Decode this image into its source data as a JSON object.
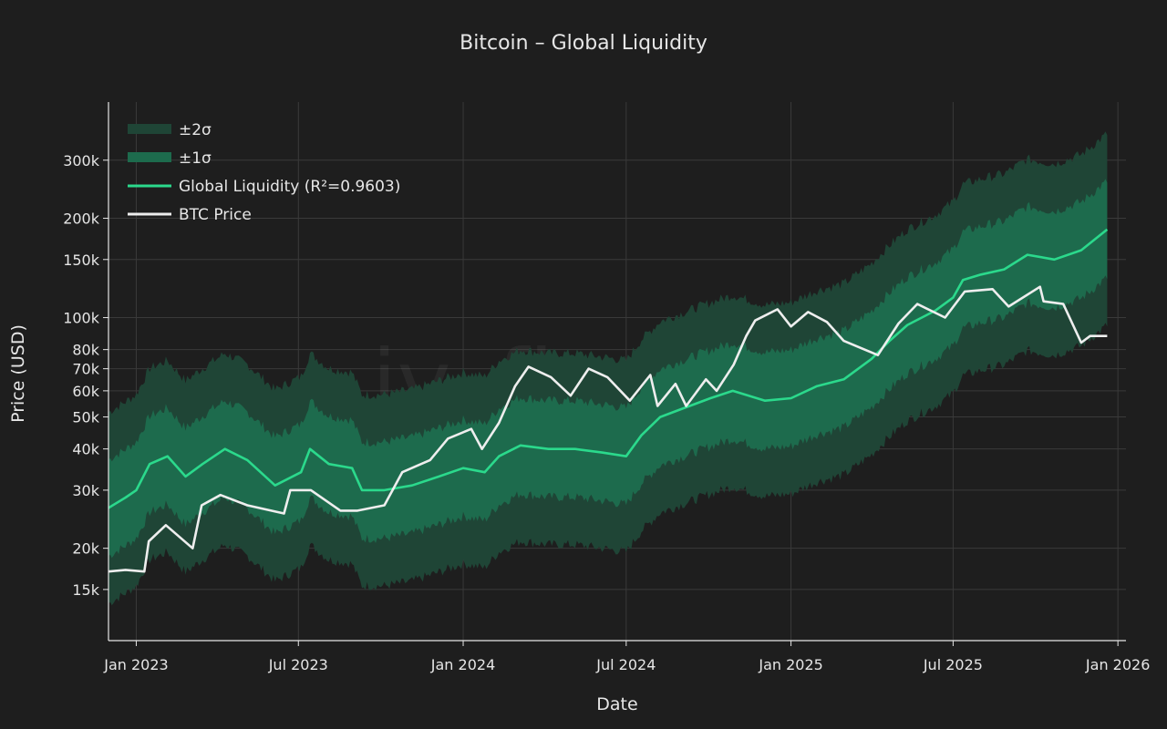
{
  "chart_data": {
    "type": "area",
    "title": "Bitcoin – Global Liquidity",
    "xlabel": "Date",
    "ylabel": "Price (USD)",
    "watermark": "jv_finance",
    "y_scale": "log",
    "ylim": [
      10500,
      450000
    ],
    "xlim": [
      "2022-12-01",
      "2026-01-10"
    ],
    "grid": true,
    "legend_position": "top-left",
    "x_ticks": [
      {
        "date": "2023-01-01",
        "label": "Jan 2023"
      },
      {
        "date": "2023-07-01",
        "label": "Jul 2023"
      },
      {
        "date": "2024-01-01",
        "label": "Jan 2024"
      },
      {
        "date": "2024-07-01",
        "label": "Jul 2024"
      },
      {
        "date": "2025-01-01",
        "label": "Jan 2025"
      },
      {
        "date": "2025-07-01",
        "label": "Jul 2025"
      },
      {
        "date": "2026-01-01",
        "label": "Jan 2026"
      }
    ],
    "y_ticks": [
      {
        "value": 15000,
        "label": "15k"
      },
      {
        "value": 20000,
        "label": "20k"
      },
      {
        "value": 30000,
        "label": "30k"
      },
      {
        "value": 40000,
        "label": "40k"
      },
      {
        "value": 50000,
        "label": "50k"
      },
      {
        "value": 60000,
        "label": "60k"
      },
      {
        "value": 70000,
        "label": "70k"
      },
      {
        "value": 80000,
        "label": "80k"
      },
      {
        "value": 100000,
        "label": "100k"
      },
      {
        "value": 150000,
        "label": "150k"
      },
      {
        "value": 200000,
        "label": "200k"
      },
      {
        "value": 300000,
        "label": "300k"
      }
    ],
    "legend": [
      {
        "label": "±2σ",
        "kind": "band",
        "color": "#1f4536"
      },
      {
        "label": "±1σ",
        "kind": "band",
        "color": "#1d6b4d"
      },
      {
        "label": "Global Liquidity (R²=0.9603)",
        "kind": "line",
        "color": "#2bd98c"
      },
      {
        "label": "BTC Price",
        "kind": "line",
        "color": "#eeeeee"
      }
    ],
    "bands": {
      "sigma1_factor": 1.4,
      "sigma2_factor": 1.95
    },
    "series": [
      {
        "name": "Global Liquidity (R²=0.9603)",
        "color": "#2bd98c",
        "points": [
          [
            "2022-12-01",
            26500
          ],
          [
            "2022-12-20",
            28500
          ],
          [
            "2023-01-01",
            30000
          ],
          [
            "2023-01-16",
            36000
          ],
          [
            "2023-02-05",
            38000
          ],
          [
            "2023-02-25",
            33000
          ],
          [
            "2023-03-16",
            36000
          ],
          [
            "2023-04-10",
            40000
          ],
          [
            "2023-05-05",
            37000
          ],
          [
            "2023-06-05",
            31000
          ],
          [
            "2023-07-04",
            34000
          ],
          [
            "2023-07-14",
            40000
          ],
          [
            "2023-08-04",
            36000
          ],
          [
            "2023-08-30",
            35000
          ],
          [
            "2023-09-10",
            30000
          ],
          [
            "2023-10-05",
            30000
          ],
          [
            "2023-11-05",
            31000
          ],
          [
            "2023-12-05",
            33000
          ],
          [
            "2024-01-01",
            35000
          ],
          [
            "2024-01-25",
            34000
          ],
          [
            "2024-02-10",
            38000
          ],
          [
            "2024-03-05",
            41000
          ],
          [
            "2024-04-05",
            40000
          ],
          [
            "2024-05-05",
            40000
          ],
          [
            "2024-06-04",
            39000
          ],
          [
            "2024-07-01",
            38000
          ],
          [
            "2024-07-18",
            44000
          ],
          [
            "2024-08-08",
            50000
          ],
          [
            "2024-09-02",
            53000
          ],
          [
            "2024-10-03",
            57000
          ],
          [
            "2024-10-28",
            60000
          ],
          [
            "2024-12-03",
            56000
          ],
          [
            "2025-01-01",
            57000
          ],
          [
            "2025-01-30",
            62000
          ],
          [
            "2025-03-01",
            65000
          ],
          [
            "2025-04-01",
            75000
          ],
          [
            "2025-04-21",
            85000
          ],
          [
            "2025-05-11",
            95000
          ],
          [
            "2025-06-11",
            105000
          ],
          [
            "2025-07-01",
            115000
          ],
          [
            "2025-07-12",
            130000
          ],
          [
            "2025-08-01",
            135000
          ],
          [
            "2025-08-27",
            140000
          ],
          [
            "2025-09-22",
            155000
          ],
          [
            "2025-10-22",
            150000
          ],
          [
            "2025-11-21",
            160000
          ],
          [
            "2025-12-20",
            185000
          ]
        ]
      },
      {
        "name": "BTC Price",
        "color": "#eeeeee",
        "points": [
          [
            "2022-12-01",
            17000
          ],
          [
            "2022-12-20",
            17200
          ],
          [
            "2023-01-10",
            17000
          ],
          [
            "2023-01-15",
            21000
          ],
          [
            "2023-02-03",
            23500
          ],
          [
            "2023-03-05",
            20000
          ],
          [
            "2023-03-15",
            27000
          ],
          [
            "2023-04-05",
            29000
          ],
          [
            "2023-05-05",
            27000
          ],
          [
            "2023-06-15",
            25500
          ],
          [
            "2023-06-22",
            30000
          ],
          [
            "2023-07-15",
            30000
          ],
          [
            "2023-08-17",
            26000
          ],
          [
            "2023-09-05",
            26000
          ],
          [
            "2023-10-05",
            27000
          ],
          [
            "2023-10-25",
            34000
          ],
          [
            "2023-11-25",
            37000
          ],
          [
            "2023-12-15",
            43000
          ],
          [
            "2024-01-10",
            46000
          ],
          [
            "2024-01-22",
            40000
          ],
          [
            "2024-02-10",
            48000
          ],
          [
            "2024-02-28",
            62000
          ],
          [
            "2024-03-14",
            71000
          ],
          [
            "2024-04-08",
            66000
          ],
          [
            "2024-04-30",
            58000
          ],
          [
            "2024-05-20",
            70000
          ],
          [
            "2024-06-10",
            66000
          ],
          [
            "2024-07-05",
            56000
          ],
          [
            "2024-07-28",
            67000
          ],
          [
            "2024-08-05",
            54000
          ],
          [
            "2024-08-25",
            63000
          ],
          [
            "2024-09-06",
            54000
          ],
          [
            "2024-09-28",
            65000
          ],
          [
            "2024-10-10",
            60000
          ],
          [
            "2024-10-29",
            72000
          ],
          [
            "2024-11-12",
            88000
          ],
          [
            "2024-11-22",
            98000
          ],
          [
            "2024-12-17",
            106000
          ],
          [
            "2025-01-01",
            94000
          ],
          [
            "2025-01-20",
            104000
          ],
          [
            "2025-02-10",
            97000
          ],
          [
            "2025-03-01",
            85000
          ],
          [
            "2025-04-08",
            77000
          ],
          [
            "2025-05-01",
            96000
          ],
          [
            "2025-05-22",
            110000
          ],
          [
            "2025-06-22",
            100000
          ],
          [
            "2025-07-14",
            120000
          ],
          [
            "2025-08-14",
            122000
          ],
          [
            "2025-09-01",
            108000
          ],
          [
            "2025-10-06",
            124000
          ],
          [
            "2025-10-10",
            112000
          ],
          [
            "2025-11-01",
            110000
          ],
          [
            "2025-11-21",
            84000
          ],
          [
            "2025-12-01",
            88000
          ],
          [
            "2025-12-20",
            88000
          ]
        ]
      }
    ]
  }
}
